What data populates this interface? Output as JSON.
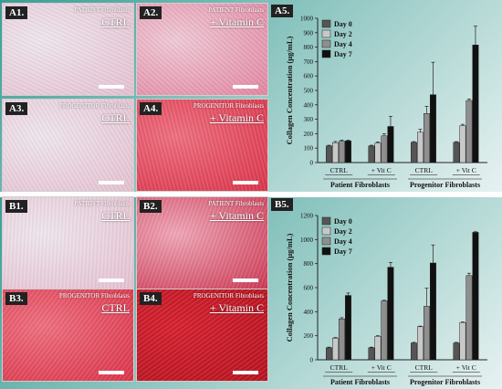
{
  "colors": {
    "day0": "#555555",
    "day2": "#c8c8c8",
    "day4": "#8f8f8f",
    "day7": "#111111"
  },
  "panels": [
    {
      "id": "A1",
      "label": "A1.",
      "subtitle": "PATIENT Fibroblasts",
      "condition": "CTRL",
      "tone": "pale"
    },
    {
      "id": "A2",
      "label": "A2.",
      "subtitle": "PATIENT Fibroblasts",
      "condition": "+ Vitamin C",
      "tone": "pink"
    },
    {
      "id": "A3",
      "label": "A3.",
      "subtitle": "PROGENITOR Fibroblasts",
      "condition": "CTRL",
      "tone": "pale"
    },
    {
      "id": "A4",
      "label": "A4.",
      "subtitle": "PROGENITOR Fibroblasts",
      "condition": "+ Vitamin C",
      "tone": "red"
    },
    {
      "id": "B1",
      "label": "B1.",
      "subtitle": "PATIENT Fibroblasts",
      "condition": "CTRL",
      "tone": "pale"
    },
    {
      "id": "B2",
      "label": "B2.",
      "subtitle": "PATIENT Fibroblasts",
      "condition": "+ Vitamin C",
      "tone": "pinkred"
    },
    {
      "id": "B3",
      "label": "B3.",
      "subtitle": "PROGENITOR Fibroblasts",
      "condition": "CTRL",
      "tone": "red"
    },
    {
      "id": "B4",
      "label": "B4.",
      "subtitle": "PROGENITOR Fibroblasts",
      "condition": "+ Vitamin C",
      "tone": "deepred"
    }
  ],
  "chart_data": [
    {
      "id": "A5",
      "label": "A5.",
      "type": "bar",
      "ylabel": "Collagen Concentration (µg/mL)",
      "ylim": [
        0,
        1000
      ],
      "yticks": [
        0,
        100,
        200,
        300,
        400,
        500,
        600,
        700,
        800,
        900,
        1000
      ],
      "groups": [
        "CTRL",
        "+ Vit C",
        "CTRL",
        "+ Vit C"
      ],
      "supergroups": [
        "Patient Fibroblasts",
        "Progenitor Fibroblasts"
      ],
      "series": [
        {
          "name": "Day 0",
          "values": [
            115,
            115,
            140,
            140
          ],
          "errors": [
            5,
            5,
            5,
            5
          ]
        },
        {
          "name": "Day 2",
          "values": [
            138,
            135,
            210,
            255
          ],
          "errors": [
            8,
            8,
            20,
            10
          ]
        },
        {
          "name": "Day 4",
          "values": [
            148,
            185,
            340,
            430
          ],
          "errors": [
            8,
            15,
            50,
            10
          ]
        },
        {
          "name": "Day 7",
          "values": [
            150,
            250,
            470,
            815
          ],
          "errors": [
            5,
            70,
            225,
            130
          ]
        }
      ],
      "legend": "top-left"
    },
    {
      "id": "B5",
      "label": "B5.",
      "type": "bar",
      "ylabel": "Collagen Concentration (µg/mL)",
      "ylim": [
        0,
        1200
      ],
      "yticks": [
        0,
        200,
        400,
        600,
        800,
        1000,
        1200
      ],
      "groups": [
        "CTRL",
        "+ Vit C",
        "CTRL",
        "+ Vit C"
      ],
      "supergroups": [
        "Patient Fibroblasts",
        "Progenitor Fibroblasts"
      ],
      "series": [
        {
          "name": "Day 0",
          "values": [
            100,
            100,
            140,
            140
          ],
          "errors": [
            5,
            5,
            5,
            5
          ]
        },
        {
          "name": "Day 2",
          "values": [
            180,
            195,
            275,
            310
          ],
          "errors": [
            5,
            5,
            5,
            5
          ]
        },
        {
          "name": "Day 4",
          "values": [
            340,
            490,
            445,
            700
          ],
          "errors": [
            10,
            5,
            150,
            20
          ]
        },
        {
          "name": "Day 7",
          "values": [
            535,
            770,
            805,
            1060
          ],
          "errors": [
            20,
            40,
            150,
            5
          ]
        }
      ],
      "legend": "top-left"
    }
  ]
}
